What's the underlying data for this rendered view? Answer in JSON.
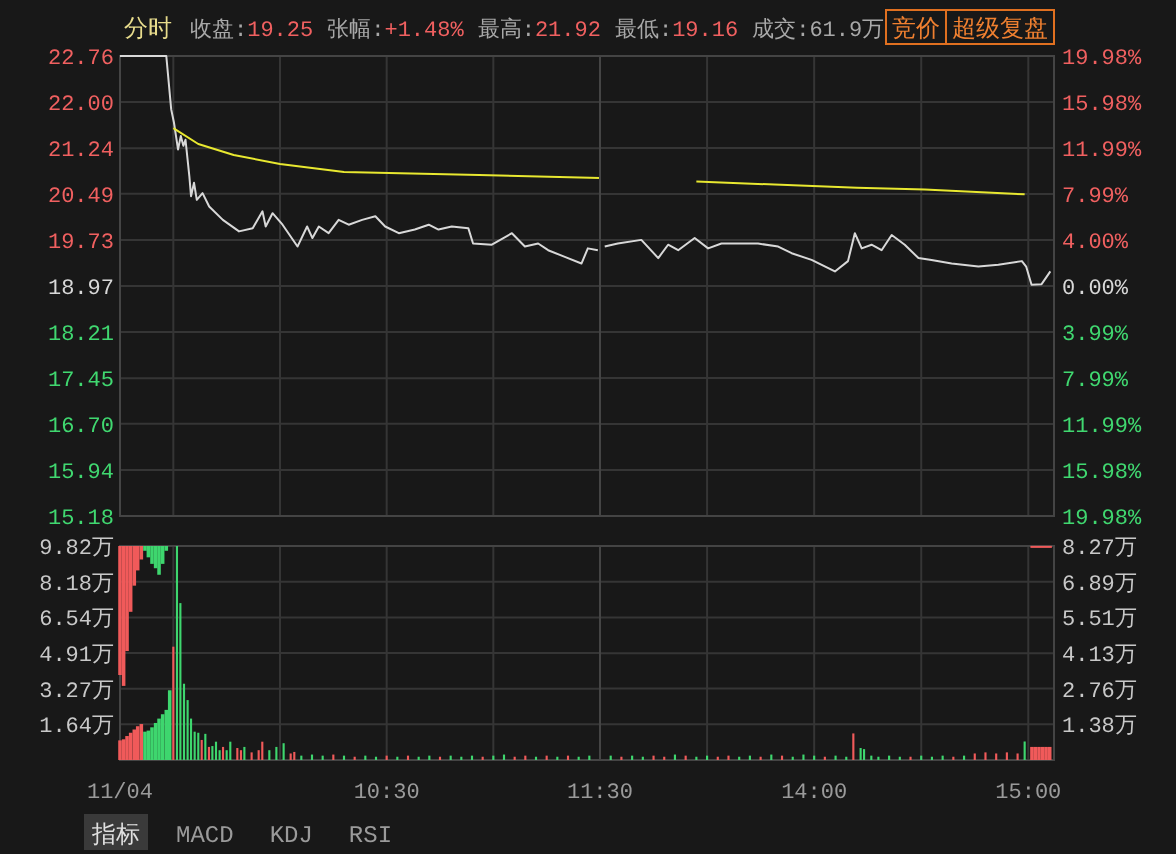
{
  "chart_data": [
    {
      "type": "line",
      "title": "分时",
      "annotations": [
        "收盘:19.25",
        "张幅:+1.48%",
        "最高:21.92",
        "最低:19.16",
        "成交:61.9万",
        "竞价",
        "超级复盘"
      ],
      "xlim": [
        9.25,
        11.5
      ],
      "xticks": [
        9.5,
        10,
        10.5,
        11,
        11.5
      ],
      "ylim": [
        15.18,
        22.76
      ],
      "yticks": [
        15.18,
        15.94,
        {
          "value": 16.7,
          "label": "16.70"
        },
        17.45,
        18.21,
        18.97,
        19.73,
        20.49,
        21.24,
        {
          "value": 22,
          "label": "22.00"
        },
        22.76
      ],
      "grid": true,
      "tick_labels": "y",
      "series": [
        {
          "color": "#d8d8d8",
          "x": [
            9.25,
            9.467,
            9.49,
            9.503,
            9.522,
            9.535,
            9.547,
            9.557,
            9.575,
            9.583,
            9.597,
            9.61,
            9.637,
            9.668,
            9.732,
            9.808,
            9.872,
            9.918,
            9.933,
            9.965,
            10.012,
            10.082,
            10.127,
            10.152,
            10.182,
            10.228,
            10.275,
            10.322,
            10.385,
            10.447,
            10.493,
            10.557,
            10.632,
            10.697,
            10.743,
            10.805,
            10.883,
            10.905,
            10.993,
            11.087,
            11.148,
            11.21,
            11.257,
            11.335,
            11.413,
            11.443,
            11.49
          ],
          "values": [
            22.76,
            22.76,
            21.88,
            21.66,
            21.22,
            21.44,
            21.28,
            21.38,
            20.78,
            20.45,
            20.67,
            20.39,
            20.5,
            20.28,
            20.06,
            19.87,
            19.92,
            20.2,
            19.95,
            20.17,
            19.98,
            19.62,
            19.95,
            19.76,
            19.95,
            19.84,
            20.06,
            19.98,
            20.06,
            20.12,
            19.95,
            19.84,
            19.9,
            19.98,
            19.9,
            19.95,
            19.92,
            19.67,
            19.65,
            19.84,
            19.62,
            19.67,
            19.56,
            19.45,
            19.34,
            19.59,
            19.56
          ]
        },
        {
          "color": "#e8e830",
          "x": [
            9.5,
            9.617,
            9.783,
            10,
            10.3,
            10.933,
            11.5
          ],
          "values": [
            21.57,
            21.31,
            21.13,
            20.98,
            20.85,
            20.8,
            20.75
          ]
        }
      ]
    },
    {
      "type": "line",
      "xlim": [
        13,
        15.12
      ],
      "xticks": [
        13,
        13.5,
        14,
        14.5,
        15
      ],
      "ylim": [
        15.18,
        22.76
      ],
      "y2lim": [
        -19.98,
        19.98
      ],
      "y2ticks": [
        {
          "value": -19.98,
          "label": "19.98%"
        },
        {
          "value": -15.98,
          "label": "15.98%"
        },
        {
          "value": -11.99,
          "label": "11.99%"
        },
        {
          "value": -7.99,
          "label": "7.99%"
        },
        {
          "value": -3.99,
          "label": "3.99%"
        },
        {
          "value": 0,
          "label": "0.00%"
        },
        {
          "value": 4,
          "label": "4.00%"
        },
        {
          "value": 7.99,
          "label": "7.99%"
        },
        {
          "value": 11.99,
          "label": "11.99%"
        },
        {
          "value": 15.98,
          "label": "15.98%"
        },
        {
          "value": 19.98,
          "label": "19.98%"
        }
      ],
      "grid": true,
      "tick_labels": "y",
      "series": [
        {
          "color": "#d8d8d8",
          "x": [
            13.022,
            13.083,
            13.193,
            13.272,
            13.318,
            13.365,
            13.442,
            13.505,
            13.567,
            13.645,
            13.738,
            13.832,
            13.895,
            13.988,
            14.097,
            14.158,
            14.19,
            14.222,
            14.268,
            14.315,
            14.362,
            14.423,
            14.487,
            14.548,
            14.642,
            14.767,
            14.86,
            14.97,
            14.99,
            15.015,
            15.062,
            15.103
          ],
          "values": [
            19.62,
            19.67,
            19.73,
            19.43,
            19.65,
            19.56,
            19.76,
            19.59,
            19.67,
            19.67,
            19.67,
            19.62,
            19.51,
            19.4,
            19.21,
            19.38,
            19.84,
            19.59,
            19.65,
            19.56,
            19.81,
            19.65,
            19.43,
            19.4,
            19.34,
            19.29,
            19.32,
            19.38,
            19.29,
            18.99,
            19.0,
            19.21
          ]
        },
        {
          "color": "#e8e830",
          "x": [
            13.45,
            14.2,
            14.517,
            14.983
          ],
          "values": [
            20.69,
            20.59,
            20.56,
            20.48
          ]
        }
      ]
    },
    {
      "type": "bar",
      "xlabel": "11/04",
      "annotations": [
        "指标",
        "MACD",
        "KDJ",
        "RSI"
      ],
      "xlim": [
        9.25,
        11.5
      ],
      "xticks": [
        {
          "value": 9.5,
          "label": null
        },
        {
          "value": 10,
          "label": null
        },
        {
          "value": 10.5,
          "label": "10:30"
        },
        {
          "value": 11,
          "label": null
        },
        {
          "value": 11.5,
          "label": "11:30"
        }
      ],
      "ylim": [
        0,
        9.82
      ],
      "yticks": [
        {
          "value": 1.64,
          "label": "1.64万"
        },
        {
          "value": 3.27,
          "label": "3.27万"
        },
        {
          "value": 4.91,
          "label": "4.91万"
        },
        {
          "value": 6.54,
          "label": "6.54万"
        },
        {
          "value": 8.18,
          "label": "8.18万"
        },
        {
          "value": 9.82,
          "label": "9.82万"
        }
      ],
      "grid": true,
      "series": [
        {
          "x": [
            9.25,
            9.267,
            9.283,
            9.3,
            9.317,
            9.333,
            9.35,
            9.367,
            9.383,
            9.4,
            9.417,
            9.433,
            9.45,
            9.467
          ],
          "base": [
            3.9,
            3.4,
            5.0,
            6.8,
            8.0,
            8.7,
            9.2,
            9.6,
            9.3,
            9.0,
            8.8,
            8.5,
            9.0,
            9.6
          ],
          "values": [
            5.92,
            6.42,
            4.82,
            3.02,
            1.82,
            1.12,
            0.62,
            0.22,
            0.52,
            0.82,
            1.02,
            1.32,
            0.82,
            0.22
          ],
          "colors": [
            "#f05a5a",
            "#f05a5a",
            "#f05a5a",
            "#f05a5a",
            "#f05a5a",
            "#f05a5a",
            "#f05a5a",
            "#3ed66e",
            "#3ed66e",
            "#3ed66e",
            "#3ed66e",
            "#3ed66e",
            "#3ed66e",
            "#3ed66e"
          ]
        },
        {
          "x": [
            9.25,
            9.267,
            9.283,
            9.3,
            9.317,
            9.333,
            9.35,
            9.367,
            9.383,
            9.4,
            9.417,
            9.433,
            9.45,
            9.467,
            9.483,
            9.5,
            9.517,
            9.533,
            9.55,
            9.567,
            9.583,
            9.6,
            9.617,
            9.633,
            9.65,
            9.667,
            9.683,
            9.7,
            9.717,
            9.733,
            9.75,
            9.767,
            9.8,
            9.817,
            9.833,
            9.867,
            9.9,
            9.917,
            9.95,
            9.983,
            10.017,
            10.05,
            10.067,
            10.1,
            10.15,
            10.2,
            10.25,
            10.3,
            10.35,
            10.4,
            10.45,
            10.5,
            10.55,
            10.6,
            10.65,
            10.7,
            10.75,
            10.8,
            10.85,
            10.9,
            10.95,
            11,
            11.05,
            11.1,
            11.15,
            11.2,
            11.25,
            11.3,
            11.35,
            11.4,
            11.45
          ],
          "values": [
            0.9,
            0.95,
            1.1,
            1.25,
            1.4,
            1.55,
            1.65,
            1.3,
            1.35,
            1.5,
            1.7,
            1.9,
            2.1,
            2.3,
            3.2,
            5.2,
            9.82,
            7.2,
            3.5,
            2.75,
            1.9,
            1.3,
            1.25,
            0.92,
            1.2,
            0.6,
            0.64,
            0.84,
            0.45,
            0.6,
            0.45,
            0.84,
            0.55,
            0.45,
            0.6,
            0.35,
            0.45,
            0.84,
            0.45,
            0.6,
            0.77,
            0.3,
            0.37,
            0.2,
            0.25,
            0.2,
            0.25,
            0.2,
            0.15,
            0.2,
            0.15,
            0.2,
            0.15,
            0.2,
            0.15,
            0.2,
            0.15,
            0.2,
            0.15,
            0.2,
            0.15,
            0.2,
            0.25,
            0.15,
            0.2,
            0.15,
            0.2,
            0.15,
            0.2,
            0.15,
            0.2
          ],
          "colors": [
            "#f05a5a",
            "#f05a5a",
            "#f05a5a",
            "#f05a5a",
            "#f05a5a",
            "#f05a5a",
            "#f05a5a",
            "#3ed66e",
            "#3ed66e",
            "#3ed66e",
            "#3ed66e",
            "#3ed66e",
            "#3ed66e",
            "#3ed66e",
            "#3ed66e",
            "#f05a5a",
            "#3ed66e",
            "#3ed66e",
            "#3ed66e",
            "#3ed66e",
            "#3ed66e",
            "#3ed66e",
            "#3ed66e",
            "#f05a5a",
            "#3ed66e",
            "#f05a5a",
            "#3ed66e",
            "#3ed66e",
            "#3ed66e",
            "#f05a5a",
            "#3ed66e",
            "#3ed66e",
            "#f05a5a",
            "#f05a5a",
            "#3ed66e",
            "#f05a5a",
            "#f05a5a",
            "#f05a5a",
            "#3ed66e",
            "#3ed66e",
            "#3ed66e",
            "#f05a5a",
            "#f05a5a",
            "#3ed66e",
            "#3ed66e",
            "#3ed66e",
            "#f05a5a",
            "#3ed66e",
            "#f05a5a",
            "#3ed66e",
            "#3ed66e",
            "#f05a5a",
            "#3ed66e",
            "#f05a5a",
            "#3ed66e",
            "#3ed66e",
            "#f05a5a",
            "#3ed66e",
            "#3ed66e",
            "#3ed66e",
            "#f05a5a",
            "#3ed66e",
            "#3ed66e",
            "#f05a5a",
            "#f05a5a",
            "#3ed66e",
            "#f05a5a",
            "#3ed66e",
            "#f05a5a",
            "#3ed66e",
            "#3ed66e"
          ]
        }
      ]
    },
    {
      "type": "bar",
      "xlim": [
        13,
        15.12
      ],
      "xticks": [
        {
          "value": 13,
          "label": null
        },
        {
          "value": 13.5,
          "label": null
        },
        {
          "value": 14,
          "label": "14:00"
        },
        {
          "value": 14.5,
          "label": null
        },
        {
          "value": 15,
          "label": "15:00"
        }
      ],
      "ylim": [
        0,
        9.82
      ],
      "y2lim": [
        0,
        8.27
      ],
      "y2ticks": [
        {
          "value": 1.38,
          "label": "1.38万"
        },
        {
          "value": 2.76,
          "label": "2.76万"
        },
        {
          "value": 4.13,
          "label": "4.13万"
        },
        {
          "value": 5.51,
          "label": "5.51万"
        },
        {
          "value": 6.89,
          "label": "6.89万"
        },
        {
          "value": 8.27,
          "label": "8.27万"
        }
      ],
      "grid": true,
      "series": [
        {
          "x": [
            13.05,
            13.1,
            13.15,
            13.2,
            13.25,
            13.3,
            13.35,
            13.4,
            13.45,
            13.5,
            13.55,
            13.6,
            13.65,
            13.7,
            13.75,
            13.8,
            13.85,
            13.9,
            13.95,
            14,
            14.05,
            14.1,
            14.15,
            14.183,
            14.217,
            14.233,
            14.267,
            14.3,
            14.35,
            14.4,
            14.45,
            14.5,
            14.55,
            14.6,
            14.65,
            14.7,
            14.75,
            14.8,
            14.85,
            14.9,
            14.95,
            14.983,
            15.017,
            15.033,
            15.05,
            15.067,
            15.083,
            15.1
          ],
          "values": [
            0.2,
            0.15,
            0.2,
            0.15,
            0.2,
            0.15,
            0.25,
            0.2,
            0.15,
            0.2,
            0.15,
            0.2,
            0.15,
            0.2,
            0.15,
            0.25,
            0.2,
            0.15,
            0.25,
            0.2,
            0.15,
            0.2,
            0.15,
            1.22,
            0.55,
            0.5,
            0.2,
            0.15,
            0.2,
            0.15,
            0.15,
            0.2,
            0.15,
            0.2,
            0.15,
            0.2,
            0.3,
            0.35,
            0.3,
            0.35,
            0.3,
            0.85,
            0.6,
            0.6,
            0.6,
            0.6,
            0.6,
            0.6
          ],
          "colors": [
            "#3ed66e",
            "#f05a5a",
            "#3ed66e",
            "#3ed66e",
            "#f05a5a",
            "#f05a5a",
            "#3ed66e",
            "#f05a5a",
            "#3ed66e",
            "#3ed66e",
            "#f05a5a",
            "#f05a5a",
            "#3ed66e",
            "#3ed66e",
            "#f05a5a",
            "#3ed66e",
            "#f05a5a",
            "#3ed66e",
            "#3ed66e",
            "#3ed66e",
            "#f05a5a",
            "#3ed66e",
            "#3ed66e",
            "#f05a5a",
            "#3ed66e",
            "#3ed66e",
            "#3ed66e",
            "#3ed66e",
            "#3ed66e",
            "#3ed66e",
            "#f05a5a",
            "#3ed66e",
            "#3ed66e",
            "#3ed66e",
            "#f05a5a",
            "#3ed66e",
            "#f05a5a",
            "#f05a5a",
            "#f05a5a",
            "#f05a5a",
            "#f05a5a",
            "#3ed66e",
            "#f05a5a",
            "#f05a5a",
            "#f05a5a",
            "#f05a5a",
            "#f05a5a",
            "#f05a5a"
          ]
        },
        {
          "type": "line",
          "color": "#f05a5a",
          "x": [
            15.01,
            15.11
          ],
          "values": [
            9.78,
            9.78
          ]
        }
      ]
    }
  ]
}
